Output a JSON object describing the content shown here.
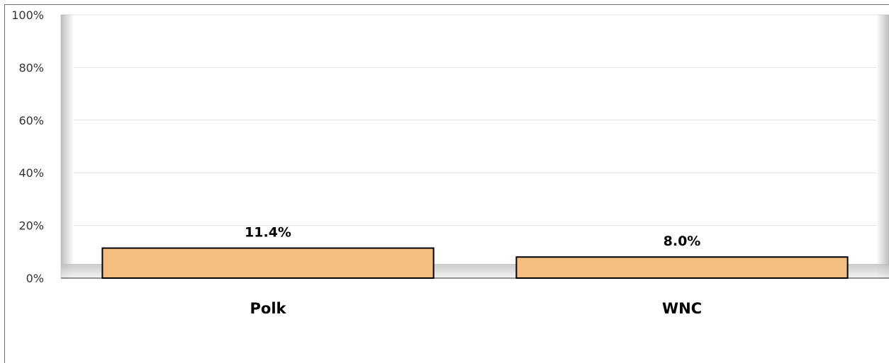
{
  "chart_data": {
    "type": "bar",
    "title": "",
    "xlabel": "",
    "ylabel": "",
    "categories": [
      "Polk",
      "WNC"
    ],
    "series": [
      {
        "values": [
          11.4,
          8.0
        ]
      }
    ],
    "data_labels": [
      "11.4%",
      "8.0%"
    ],
    "ylim": [
      0,
      100
    ],
    "yticks": [
      0,
      20,
      40,
      60,
      80,
      100
    ],
    "ytick_labels": [
      "0%",
      "20%",
      "40%",
      "60%",
      "80%",
      "100%"
    ],
    "grid": true,
    "legend": false,
    "colors": {
      "bar_fill": "#f4be80",
      "bar_stroke": "#000000",
      "grid": "#e3e3e3",
      "plot_border": "#c8c8c8"
    }
  }
}
